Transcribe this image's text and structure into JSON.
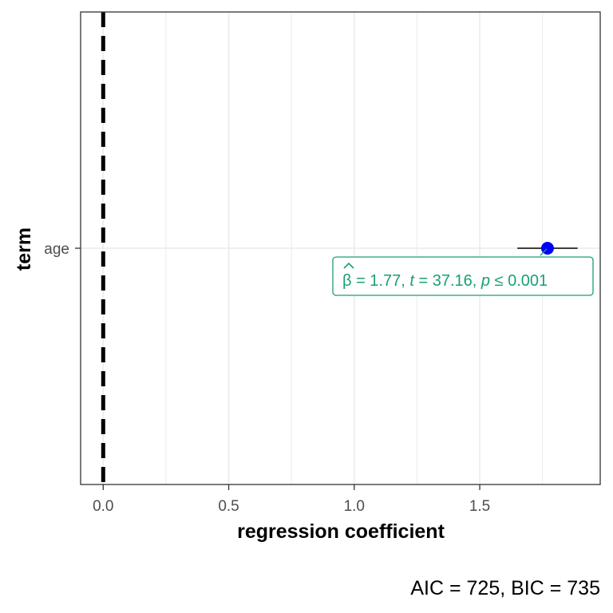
{
  "chart_data": {
    "type": "scatter",
    "title": "",
    "xlabel": "regression coefficient",
    "ylabel": "term",
    "xlim": [
      -0.09,
      1.98
    ],
    "x_ticks": [
      0.0,
      0.5,
      1.0,
      1.5
    ],
    "x_tick_labels": [
      "0.0",
      "0.5",
      "1.0",
      "1.5"
    ],
    "x_minor_ticks": [
      0.25,
      0.75,
      1.25,
      1.75
    ],
    "reference_line_x": 0,
    "grid": true,
    "categories": [
      "age"
    ],
    "points": [
      {
        "term": "age",
        "estimate": 1.77,
        "ci_low": 1.65,
        "ci_high": 1.89,
        "label": {
          "beta_symbol": "β",
          "beta_eq": " = 1.77, ",
          "t_symbol": "t",
          "t_eq": " = 37.16, ",
          "p_symbol": "p",
          "p_eq": " ≤ 0.001"
        }
      }
    ],
    "caption": "AIC = 725, BIC = 735",
    "colors": {
      "point": "#0000ff",
      "label": "#1b9e77",
      "reference_line": "#000000",
      "grid": "#ebebeb"
    }
  }
}
